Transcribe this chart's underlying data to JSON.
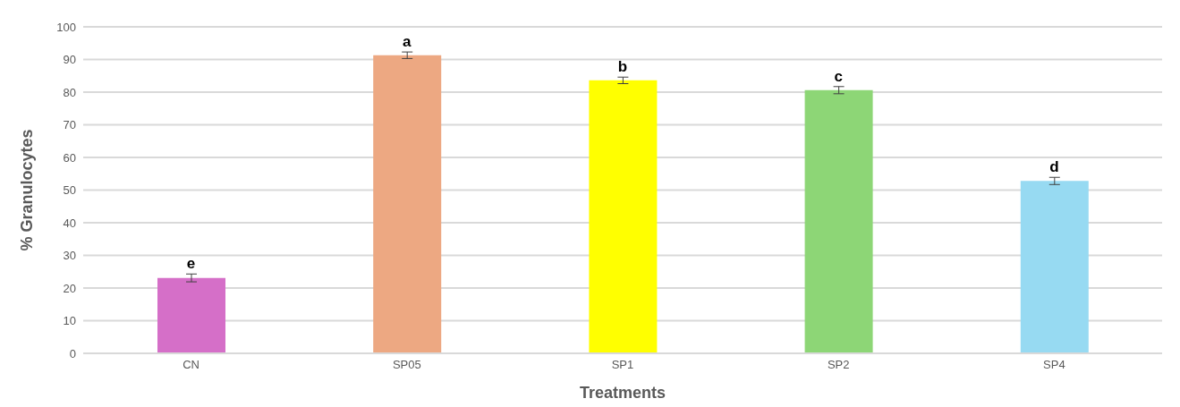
{
  "chart_data": {
    "type": "bar",
    "xlabel": "Treatments",
    "ylabel": "% Granulocytes",
    "categories": [
      "CN",
      "SP05",
      "SP1",
      "SP2",
      "SP4"
    ],
    "values": [
      23.1,
      91.3,
      83.6,
      80.6,
      52.8
    ],
    "errors": [
      1.2,
      1.0,
      1.0,
      1.1,
      1.1
    ],
    "colors": [
      "#d56fc8",
      "#eda882",
      "#ffff00",
      "#8dd676",
      "#97daf2"
    ],
    "ylim": [
      0,
      100
    ],
    "yticks": [
      0,
      10,
      20,
      30,
      40,
      50,
      60,
      70,
      80,
      90,
      100
    ],
    "grid": "y",
    "annotations": [
      {
        "text": "e",
        "x": "CN",
        "y": 24.3
      },
      {
        "text": "a",
        "x": "SP05",
        "y": 92.3
      },
      {
        "text": "b",
        "x": "SP1",
        "y": 84.6
      },
      {
        "text": "c",
        "x": "SP2",
        "y": 81.7
      },
      {
        "text": "d",
        "x": "SP4",
        "y": 53.9
      }
    ]
  }
}
